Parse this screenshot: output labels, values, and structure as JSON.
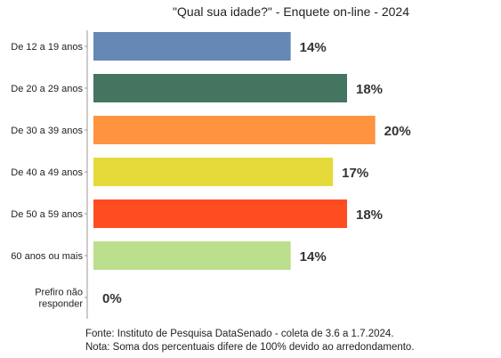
{
  "chart_data": {
    "type": "bar",
    "orientation": "horizontal",
    "title": "\"Qual sua idade?\" - Enquete on-line - 2024",
    "categories": [
      [
        "De 12 a 19 anos"
      ],
      [
        "De 20 a 29 anos"
      ],
      [
        "De 30 a 39 anos"
      ],
      [
        "De 40 a 49 anos"
      ],
      [
        "De 50 a 59 anos"
      ],
      [
        "60 anos ou mais"
      ],
      [
        "Prefiro não",
        "responder"
      ]
    ],
    "values": [
      14,
      18,
      20,
      17,
      18,
      14,
      0
    ],
    "value_labels": [
      "14%",
      "18%",
      "20%",
      "17%",
      "18%",
      "14%",
      "0%"
    ],
    "colors": [
      "#6688B4",
      "#437560",
      "#FF9340",
      "#E5DA3A",
      "#FF4D22",
      "#BBDF8C",
      "#BBBBBB"
    ],
    "xlim": [
      0,
      24
    ],
    "grid": false,
    "legend": "none"
  },
  "footer": {
    "source": "Fonte: Instituto de Pesquisa DataSenado - coleta de 3.6 a 1.7.2024.",
    "note": "Nota: Soma dos percentuais difere de 100% devido ao arredondamento."
  }
}
